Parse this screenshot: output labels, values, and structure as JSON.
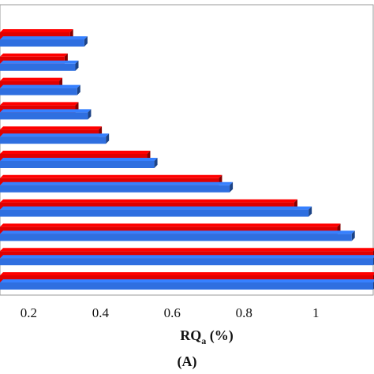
{
  "chart_data": {
    "type": "bar",
    "orientation": "horizontal",
    "series": [
      {
        "color": "#e00000",
        "values": [
          0.315,
          0.3,
          0.285,
          0.33,
          0.395,
          0.53,
          0.73,
          0.94,
          1.06,
          1.16,
          1.16
        ]
      },
      {
        "color": "#2f6fe0",
        "values": [
          0.355,
          0.33,
          0.335,
          0.365,
          0.415,
          0.55,
          0.76,
          0.98,
          1.1,
          1.16,
          1.16
        ]
      }
    ],
    "xlabel": {
      "main": "RQ",
      "sub": "a",
      "tail": " (%)"
    },
    "xlim": [
      0.12,
      1.16
    ],
    "xticks": [
      "0.2",
      "0.4",
      "0.6",
      "0.8",
      "1"
    ],
    "xtick_values": [
      0.2,
      0.4,
      0.6,
      0.8,
      1.0
    ],
    "grid": false,
    "legend": "none"
  },
  "panel_label": "(A)"
}
